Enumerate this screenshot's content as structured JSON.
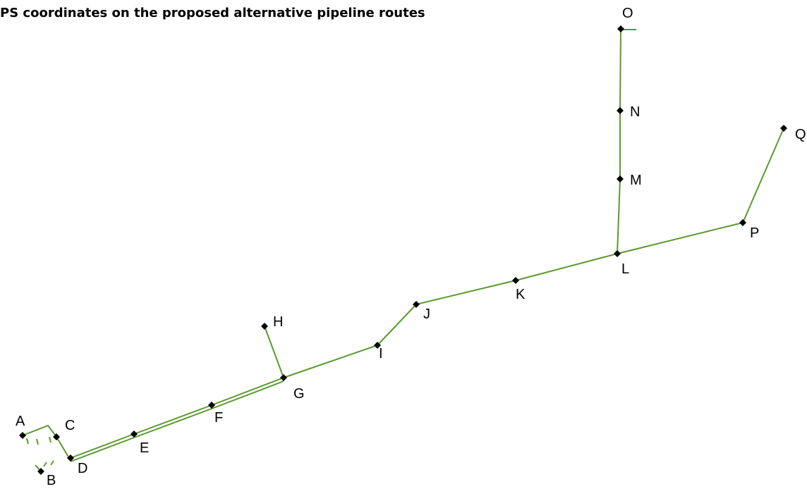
{
  "title": "PS coordinates on the proposed alternative pipeline routes",
  "colors": {
    "route": "#5a9a2e",
    "node": "#000000",
    "background": "#ffffff"
  },
  "points": [
    {
      "id": "A",
      "label": "A"
    },
    {
      "id": "B",
      "label": "B"
    },
    {
      "id": "C",
      "label": "C"
    },
    {
      "id": "D",
      "label": "D"
    },
    {
      "id": "E",
      "label": "E"
    },
    {
      "id": "F",
      "label": "F"
    },
    {
      "id": "G",
      "label": "G"
    },
    {
      "id": "H",
      "label": "H"
    },
    {
      "id": "I",
      "label": "I"
    },
    {
      "id": "J",
      "label": "J"
    },
    {
      "id": "K",
      "label": "K"
    },
    {
      "id": "L",
      "label": "L"
    },
    {
      "id": "M",
      "label": "M"
    },
    {
      "id": "N",
      "label": "N"
    },
    {
      "id": "O",
      "label": "O"
    },
    {
      "id": "P",
      "label": "P"
    },
    {
      "id": "Q",
      "label": "Q"
    }
  ],
  "segments": [
    [
      "D",
      "E"
    ],
    [
      "E",
      "F"
    ],
    [
      "F",
      "G"
    ],
    [
      "G",
      "H"
    ],
    [
      "G",
      "I"
    ],
    [
      "I",
      "J"
    ],
    [
      "J",
      "K"
    ],
    [
      "K",
      "L"
    ],
    [
      "L",
      "M"
    ],
    [
      "M",
      "N"
    ],
    [
      "N",
      "O"
    ],
    [
      "L",
      "P"
    ],
    [
      "P",
      "Q"
    ]
  ]
}
